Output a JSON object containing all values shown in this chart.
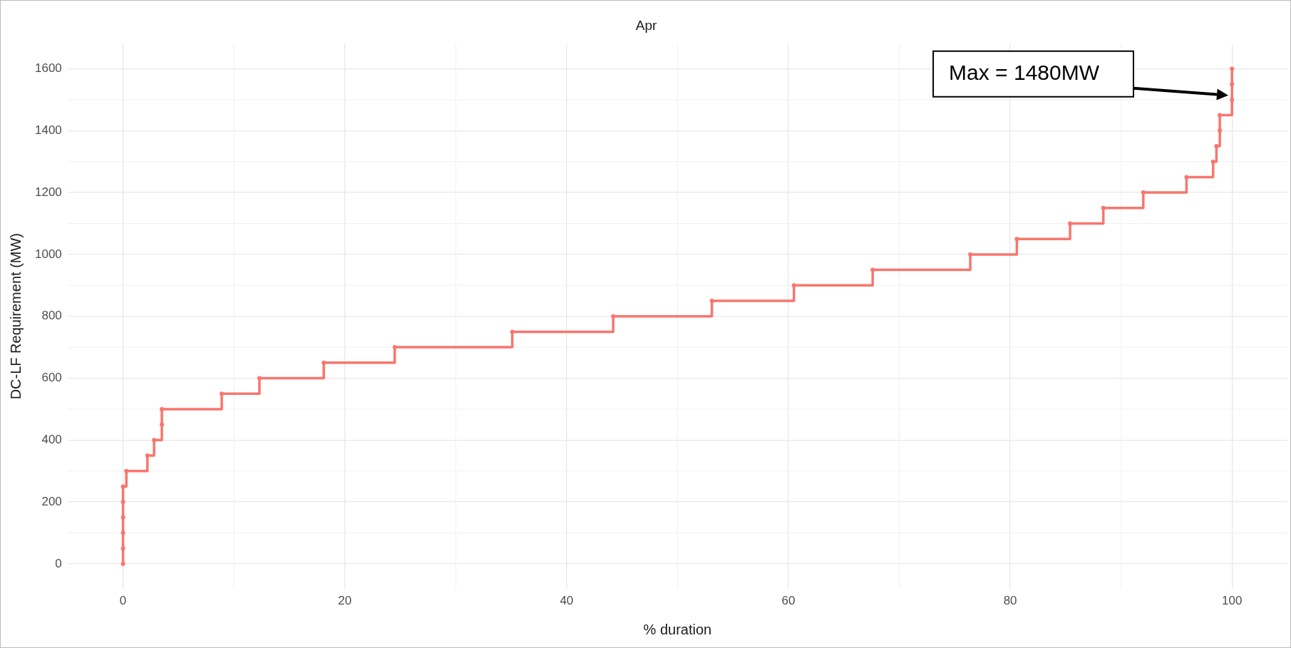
{
  "chart_data": {
    "type": "step",
    "title": "Apr",
    "xlabel": "% duration",
    "ylabel": "DC-LF Requirement (MW)",
    "x": [
      0,
      0,
      0,
      0,
      0,
      0,
      0.3,
      2.2,
      2.8,
      3.5,
      3.5,
      8.9,
      12.3,
      18.1,
      24.5,
      35.1,
      44.2,
      53.1,
      60.5,
      67.6,
      76.4,
      80.6,
      85.4,
      88.4,
      92.0,
      95.9,
      98.3,
      98.6,
      98.9,
      98.9,
      100,
      100,
      100
    ],
    "series": [
      {
        "color": "#f8766d",
        "values": [
          0,
          50,
          100,
          150,
          200,
          250,
          300,
          350,
          400,
          450,
          500,
          550,
          600,
          650,
          700,
          750,
          800,
          850,
          900,
          950,
          1000,
          1050,
          1100,
          1150,
          1200,
          1250,
          1300,
          1350,
          1400,
          1450,
          1500,
          1550,
          1600
        ]
      }
    ],
    "xlim": [
      -5,
      105
    ],
    "xticks": [
      0,
      20,
      40,
      60,
      80,
      100
    ],
    "ylim": [
      -80,
      1680
    ],
    "yticks": [
      0,
      200,
      400,
      600,
      800,
      1000,
      1200,
      1400,
      1600
    ],
    "grid": true,
    "legend": false,
    "marker": "circle",
    "line_style": "solid",
    "annotations": [
      "Max = 1480MW"
    ]
  }
}
